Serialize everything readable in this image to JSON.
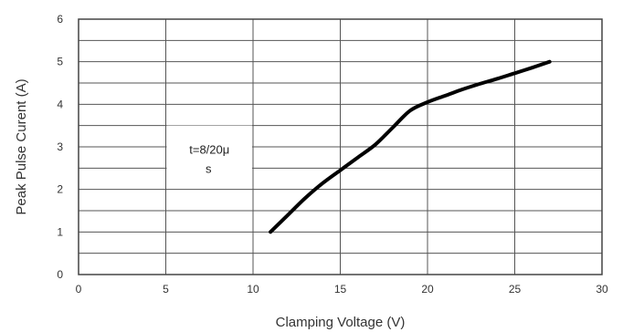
{
  "chart_data": {
    "type": "line",
    "title": "",
    "xlabel": "Clamping Voltage (V)",
    "ylabel": "Peak  Pulse Curent (A)",
    "xlim": [
      0,
      30
    ],
    "ylim": [
      0,
      6
    ],
    "x_ticks": [
      0,
      5,
      10,
      15,
      20,
      25,
      30
    ],
    "y_ticks": [
      0,
      1,
      2,
      3,
      4,
      5,
      6
    ],
    "grid": true,
    "legend": "none",
    "series": [
      {
        "x": [
          11,
          12,
          13,
          14,
          15,
          16,
          17,
          18,
          19,
          20,
          21,
          22,
          23,
          24,
          25,
          26,
          27
        ],
        "y": [
          1.0,
          1.4,
          1.8,
          2.15,
          2.45,
          2.75,
          3.05,
          3.45,
          3.85,
          4.05,
          4.2,
          4.35,
          4.48,
          4.6,
          4.73,
          4.86,
          5.0
        ]
      }
    ],
    "annotation": {
      "line1": "t=8/20μ",
      "line2": "s",
      "x": 7.5,
      "y": 3.2
    },
    "colors": {
      "line": "#000000",
      "grid": "#555555",
      "frame": "#444444"
    }
  }
}
